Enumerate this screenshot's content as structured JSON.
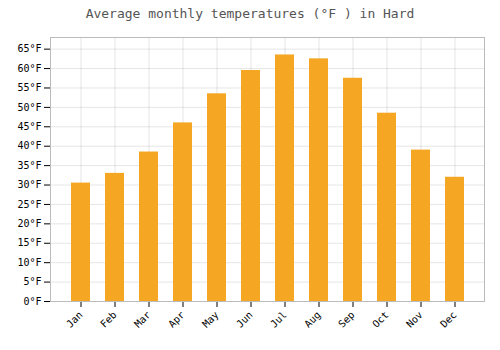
{
  "chart_data": {
    "type": "bar",
    "title": "Average monthly temperatures (°F ) in Hard",
    "categories": [
      "Jan",
      "Feb",
      "Mar",
      "Apr",
      "May",
      "Jun",
      "Jul",
      "Aug",
      "Sep",
      "Oct",
      "Nov",
      "Dec"
    ],
    "values": [
      30.5,
      33.0,
      38.5,
      46.0,
      53.5,
      59.5,
      63.5,
      62.5,
      57.5,
      48.5,
      39.0,
      32.0
    ],
    "color": "#F5A623",
    "ylim": [
      0,
      68
    ],
    "yticks": [
      {
        "value": 0,
        "label": "0°F"
      },
      {
        "value": 5,
        "label": "5°F"
      },
      {
        "value": 10,
        "label": "10°F"
      },
      {
        "value": 15,
        "label": "15°F"
      },
      {
        "value": 20,
        "label": "20°F"
      },
      {
        "value": 25,
        "label": "25°F"
      },
      {
        "value": 30,
        "label": "30°F"
      },
      {
        "value": 35,
        "label": "35°F"
      },
      {
        "value": 40,
        "label": "40°F"
      },
      {
        "value": 45,
        "label": "45°F"
      },
      {
        "value": 50,
        "label": "50°F"
      },
      {
        "value": 55,
        "label": "55°F"
      },
      {
        "value": 60,
        "label": "60°F"
      },
      {
        "value": 65,
        "label": "65°F"
      }
    ],
    "grid": true
  }
}
